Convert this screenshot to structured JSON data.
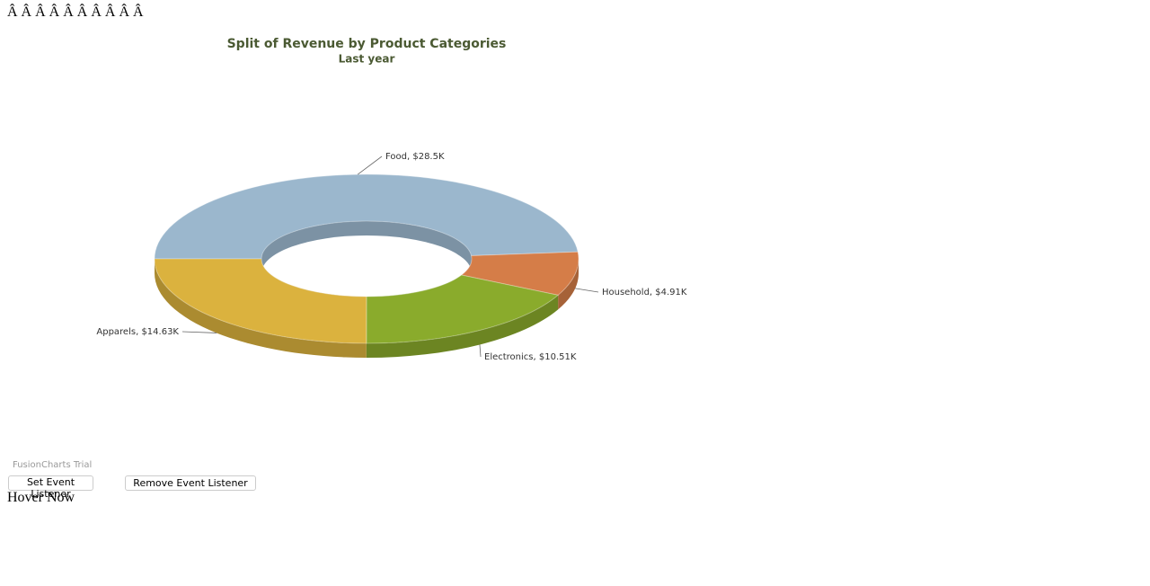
{
  "header_text": "Â Â  Â Â  Â Â  Â Â  Â Â",
  "chart_data": {
    "type": "doughnut",
    "title": "Split of Revenue by Product Categories",
    "subtitle": "Last year",
    "categories": [
      "Food",
      "Household",
      "Electronics",
      "Apparels"
    ],
    "values": [
      28500,
      4910,
      10510,
      14630
    ],
    "value_labels": [
      "$28.5K",
      "$4.91K",
      "$10.51K",
      "$14.63K"
    ],
    "colors": [
      "#9bb7cd",
      "#d57d48",
      "#8aab2c",
      "#dbb23e"
    ]
  },
  "watermark": "FusionCharts Trial",
  "buttons": [
    "Set Event Listener",
    "Remove Event Listener"
  ],
  "status_text": "Hover Now"
}
